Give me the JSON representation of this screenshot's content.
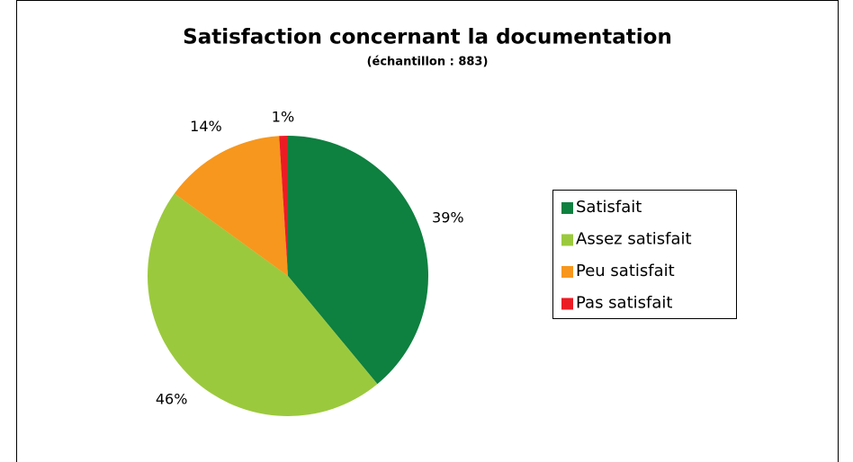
{
  "chart_data": {
    "type": "pie",
    "title": "Satisfaction concernant la documentation",
    "subtitle": "(échantillon : 883)",
    "categories": [
      "Satisfait",
      "Assez satisfait",
      "Peu satisfait",
      "Pas satisfait"
    ],
    "values": [
      39,
      46,
      14,
      1
    ],
    "value_labels": [
      "39%",
      "46%",
      "14%",
      "1%"
    ],
    "colors": [
      "#0e8040",
      "#9bc93d",
      "#f7971d",
      "#ec1c24"
    ],
    "legend": "right"
  }
}
